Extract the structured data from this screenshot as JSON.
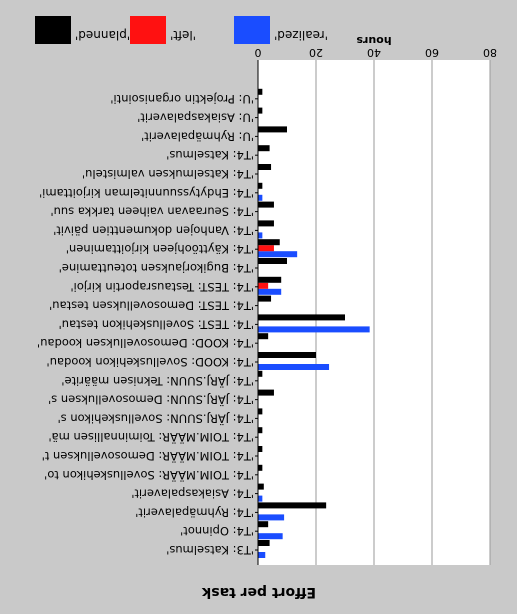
{
  "chart_data": {
    "type": "bar",
    "orientation": "horizontal",
    "title": "Effort per task",
    "xlabel": "hours",
    "xlim": [
      0,
      80
    ],
    "xticks": [
      0,
      20,
      40,
      60,
      80
    ],
    "grid": true,
    "legend_position": "top-left",
    "categories": [
      "'U: Projektin organisointi'",
      "'U: Asiakaspalaverit'",
      "'U: Ryhmäpalaverit'",
      "'T4: Katselmus'",
      "'T4: Katselmuksen valmistelu'",
      "'T4: Ehdytyssuunnitelman kirjoittami'",
      "'T4: Seuraavan vaiheen tarkka suu'",
      "'T4: Vanhojen dokumenttien päivit'",
      "'T4: Käyttöohjeen kirjoittaminen'",
      "'T4: Bugikorjauksen toteuttamine'",
      "'T4: TEST: Testausraportin kirjoi'",
      "'T4: TEST: Demosovelluksen testau'",
      "'T4: TEST: Sovelluskehikon testau'",
      "'T4: KOOD: Demosovelluksen koodau'",
      "'T4: KOOD: Sovelluskehikon koodau'",
      "'T4: JÄRJ.SUUN: Teknisen määrite'",
      "'T4: JÄRJ.SUUN: Demosovelluksen s'",
      "'T4: JÄRJ.SUUN: Sovelluskehikon s'",
      "'T4: TOIM.MÄÄR: Toiminnallisen mä'",
      "'T4: TOIM.MÄÄR: Demosovelluksen t'",
      "'T4: TOIM.MÄÄR: Sovelluskehikon to'",
      "'T4: Asiakaspalaverit'",
      "'T4: Ryhmäpalaverit'",
      "'T4: Opinnot'",
      "'T3: Katselmus'"
    ],
    "series": [
      {
        "name": "'planned'",
        "color": "#000000",
        "values": [
          1.5,
          1.5,
          10,
          4,
          4.5,
          1.5,
          5.5,
          5.5,
          7.5,
          10,
          8,
          4.5,
          30,
          3.5,
          20,
          1.5,
          5.5,
          1.5,
          1.5,
          1.5,
          1.5,
          2,
          23.5,
          3.5,
          4
        ]
      },
      {
        "name": "'left'",
        "color": "#ff1111",
        "values": [
          0,
          0,
          0,
          0,
          0,
          0,
          0,
          0,
          5.5,
          0,
          3.5,
          0,
          0,
          0,
          0,
          0,
          0,
          0,
          0,
          0,
          0,
          0,
          0,
          0,
          0
        ]
      },
      {
        "name": "'realized'",
        "color": "#1a4dff",
        "values": [
          0,
          0,
          0,
          0,
          0,
          1.5,
          0,
          1.5,
          13.5,
          0,
          8,
          0,
          38.5,
          0,
          24.5,
          0,
          0,
          0,
          0,
          0,
          0,
          1.5,
          9,
          8.5,
          2.5
        ]
      }
    ]
  }
}
